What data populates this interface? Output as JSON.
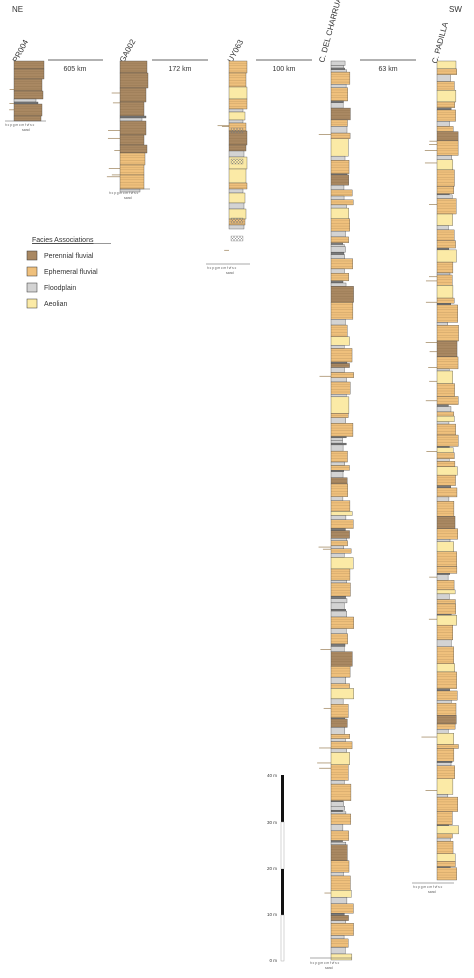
{
  "orientation": {
    "left": "NE",
    "right": "SW"
  },
  "columns": [
    {
      "id": "PR004",
      "label": "PR004"
    },
    {
      "id": "GA002",
      "label": "GA002"
    },
    {
      "id": "UY063",
      "label": "UY063"
    },
    {
      "id": "CDC",
      "label": "C. DEL CHARRUA"
    },
    {
      "id": "CP",
      "label": "C. PADILLA"
    }
  ],
  "distances": [
    "605 km",
    "172 km",
    "100 km",
    "63 km"
  ],
  "grain_scale": {
    "letters": "h c p g m c m f vf s c",
    "word": "sand"
  },
  "legend": {
    "title": "Facies Associations",
    "items": [
      {
        "label": "Perennial fluvial",
        "color": "#a98862"
      },
      {
        "label": "Ephemeral fluvial",
        "color": "#efc07c"
      },
      {
        "label": "Floodplain",
        "color": "#d3d3d3"
      },
      {
        "label": "Aeolian",
        "color": "#fbeaa6"
      }
    ]
  },
  "scale_bar": {
    "ticks": [
      "40 m",
      "30 m",
      "20 m",
      "10 m",
      "0 m"
    ]
  },
  "colors": {
    "perennial": "#a98862",
    "ephemeral": "#efc07c",
    "floodplain": "#d3d3d3",
    "aeolian": "#fbeaa6",
    "mudstone": "#7a7a7a"
  }
}
